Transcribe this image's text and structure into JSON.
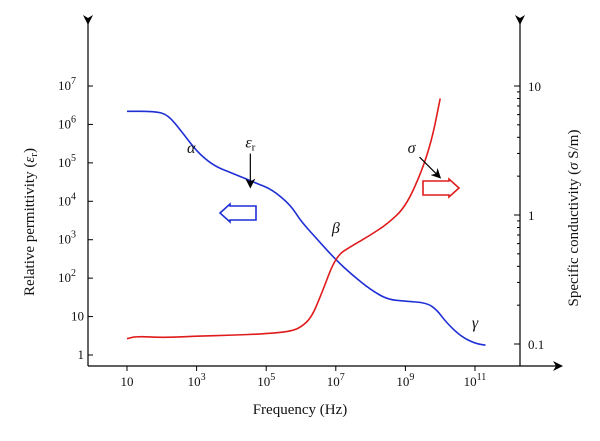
{
  "chart_data": {
    "type": "line",
    "xlabel": "Frequency (Hz)",
    "ylabel_left": "Relative permittivity (ε_r)",
    "ylabel_right": "Specific conductivity (σ S/m)",
    "x_scale": "log",
    "y_left_scale": "log",
    "y_right_scale": "log",
    "xlim": [
      10,
      300000000000
    ],
    "ylim_left": [
      1,
      10000000
    ],
    "ylim_right": [
      0.08,
      10
    ],
    "x_ticks": [
      {
        "value": 10,
        "label": "10",
        "exp": ""
      },
      {
        "value": 1000,
        "label": "10",
        "exp": "3"
      },
      {
        "value": 100000,
        "label": "10",
        "exp": "5"
      },
      {
        "value": 10000000,
        "label": "10",
        "exp": "7"
      },
      {
        "value": 1000000000,
        "label": "10",
        "exp": "9"
      },
      {
        "value": 100000000000,
        "label": "10",
        "exp": "11"
      }
    ],
    "y_left_ticks": [
      {
        "value": 1,
        "label": "1",
        "exp": ""
      },
      {
        "value": 10,
        "label": "10",
        "exp": ""
      },
      {
        "value": 100,
        "label": "10",
        "exp": "2"
      },
      {
        "value": 1000,
        "label": "10",
        "exp": "3"
      },
      {
        "value": 10000,
        "label": "10",
        "exp": "4"
      },
      {
        "value": 100000,
        "label": "10",
        "exp": "5"
      },
      {
        "value": 1000000,
        "label": "10",
        "exp": "6"
      },
      {
        "value": 10000000,
        "label": "10",
        "exp": "7"
      }
    ],
    "y_right_ticks": [
      {
        "value": 0.1,
        "label": "0.1"
      },
      {
        "value": 1,
        "label": "1"
      },
      {
        "value": 10,
        "label": "10"
      }
    ],
    "series": [
      {
        "axis": "left",
        "color": "#1f2fd6",
        "points": [
          [
            10,
            2200000
          ],
          [
            60,
            2200000
          ],
          [
            150,
            1800000
          ],
          [
            400,
            600000
          ],
          [
            1000,
            200000
          ],
          [
            3000,
            85000
          ],
          [
            10000,
            55000
          ],
          [
            50000,
            30000
          ],
          [
            150000,
            20000
          ],
          [
            500000,
            8000
          ],
          [
            1000000,
            3000
          ],
          [
            3000000,
            1000
          ],
          [
            10000000,
            300
          ],
          [
            30000000,
            120
          ],
          [
            100000000,
            50
          ],
          [
            300000000,
            28
          ],
          [
            1000000000,
            25
          ],
          [
            4000000000,
            23
          ],
          [
            8000000000,
            15
          ],
          [
            15000000000,
            7
          ],
          [
            40000000000,
            3
          ],
          [
            100000000000,
            2
          ],
          [
            200000000000,
            1.8
          ]
        ]
      },
      {
        "axis": "right",
        "color": "#e01b1b",
        "points": [
          [
            10,
            0.11
          ],
          [
            20,
            0.115
          ],
          [
            100,
            0.112
          ],
          [
            1000,
            0.115
          ],
          [
            10000,
            0.117
          ],
          [
            100000,
            0.12
          ],
          [
            500000,
            0.125
          ],
          [
            1000000,
            0.135
          ],
          [
            2000000,
            0.16
          ],
          [
            4000000,
            0.25
          ],
          [
            10000000,
            0.48
          ],
          [
            30000000,
            0.58
          ],
          [
            100000000,
            0.7
          ],
          [
            300000000,
            0.85
          ],
          [
            1000000000,
            1.15
          ],
          [
            3000000000,
            2.2
          ],
          [
            6000000000,
            4
          ],
          [
            10000000000,
            8
          ]
        ]
      }
    ],
    "annotations": [
      {
        "text": "α",
        "x": 700,
        "y": 180000
      },
      {
        "text": "β",
        "x": 10000000,
        "y": 1500
      },
      {
        "text": "γ",
        "x": 100000000000,
        "y": 5
      },
      {
        "text": "ε",
        "sub": "r",
        "x": 35000,
        "y": 250000
      },
      {
        "text": "σ",
        "x": 1500000000,
        "y": 180000
      }
    ],
    "direction_arrows": [
      {
        "direction": "left",
        "color": "#1f2fd6",
        "meaning": "left axis"
      },
      {
        "direction": "right",
        "color": "#e01b1b",
        "meaning": "right axis"
      }
    ],
    "grid": false,
    "legend": "none"
  }
}
